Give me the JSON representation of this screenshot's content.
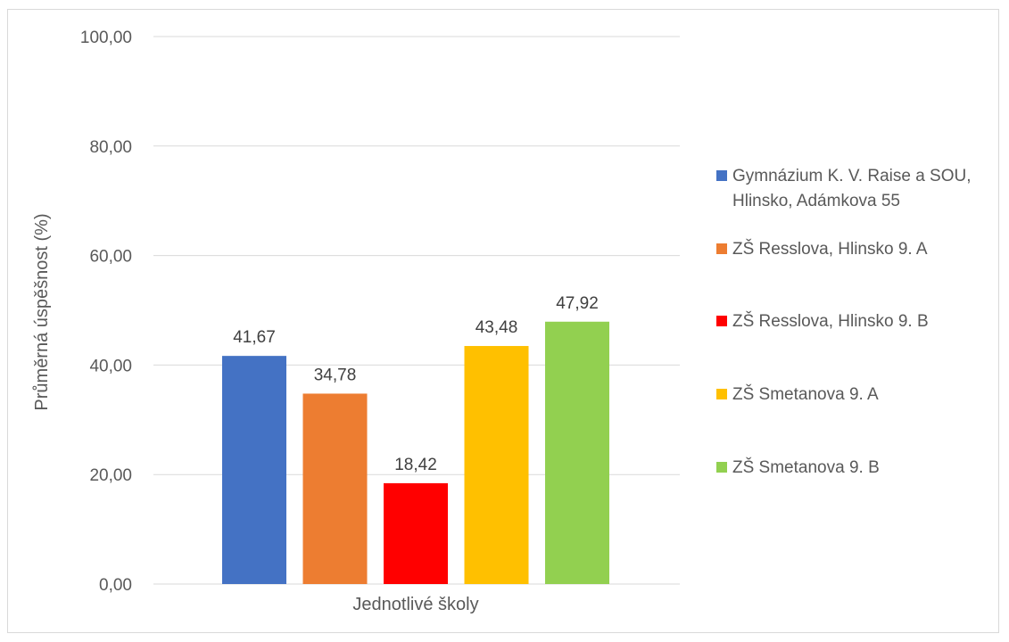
{
  "chart_data": {
    "type": "bar",
    "title": "",
    "xlabel": "Jednotlivé školy",
    "ylabel": "Průměrná úspěšnost (%)",
    "ylim": [
      0,
      100
    ],
    "yticks": [
      "0,00",
      "20,00",
      "40,00",
      "60,00",
      "80,00",
      "100,00"
    ],
    "grid": true,
    "legend_position": "right",
    "series": [
      {
        "name": "Gymnázium K. V. Raise a SOU, Hlinsko, Adámkova 55",
        "value": 41.67,
        "label": "41,67",
        "color": "#4472c4"
      },
      {
        "name": "ZŠ Resslova, Hlinsko 9. A",
        "value": 34.78,
        "label": "34,78",
        "color": "#ed7d31"
      },
      {
        "name": "ZŠ Resslova, Hlinsko 9. B",
        "value": 18.42,
        "label": "18,42",
        "color": "#ff0000"
      },
      {
        "name": "ZŠ Smetanova 9. A",
        "value": 43.48,
        "label": "43,48",
        "color": "#ffc000"
      },
      {
        "name": "ZŠ Smetanova 9. B",
        "value": 47.92,
        "label": "47,92",
        "color": "#92d050"
      }
    ]
  }
}
